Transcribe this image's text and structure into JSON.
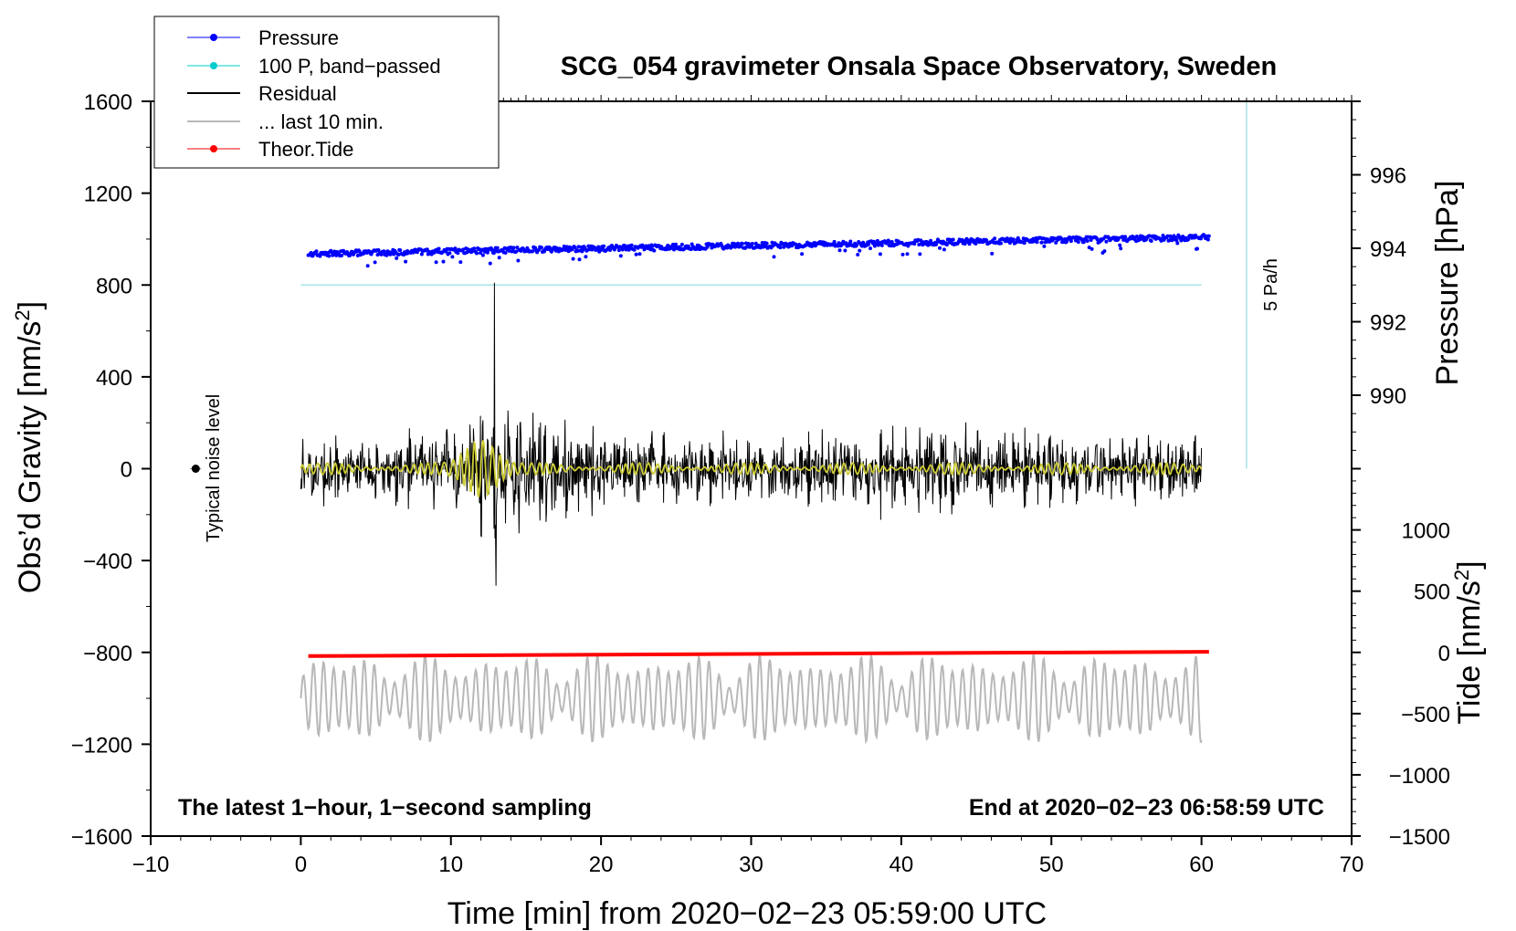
{
  "chart_data": {
    "type": "line",
    "title": "SCG_054 gravimeter Onsala Space Observatory, Sweden",
    "xlabel": "Time [min] from 2020−02−23 05:59:00 UTC",
    "ylabel_left": "Obs’d Gravity [nm/s",
    "ylabel_sup": "2",
    "ylabel_close": "]",
    "ylabel_right_pressure": "Pressure [hPa]",
    "ylabel_right_tide": "Tide [nm/s",
    "xlim": [
      -10,
      70
    ],
    "ylim_left": [
      -1600,
      1600
    ],
    "pressure_range_hpa": [
      988,
      998
    ],
    "tide_range": [
      -1500,
      1500
    ],
    "x_ticks": [
      "−10",
      "0",
      "10",
      "20",
      "30",
      "40",
      "50",
      "60",
      "70"
    ],
    "x_tick_values": [
      -10,
      0,
      10,
      20,
      30,
      40,
      50,
      60,
      70
    ],
    "y_left_ticks": [
      "1600",
      "1200",
      "800",
      "400",
      "0",
      "−400",
      "−800",
      "−1200",
      "−1600"
    ],
    "y_left_tick_values": [
      1600,
      1200,
      800,
      400,
      0,
      -400,
      -800,
      -1200,
      -1600
    ],
    "pressure_ticks": [
      "996",
      "994",
      "992",
      "990"
    ],
    "pressure_tick_values": [
      996,
      994,
      992,
      990
    ],
    "tide_ticks": [
      "1000",
      "500",
      "0",
      "−500",
      "−1000",
      "−1500"
    ],
    "tide_tick_values": [
      1000,
      500,
      0,
      -500,
      -1000,
      -1500
    ],
    "legend": [
      {
        "label": "Pressure",
        "color": "#0000ff",
        "marker": "dot"
      },
      {
        "label": "100 P, band−passed",
        "color": "#00cccc",
        "marker": "dot"
      },
      {
        "label": "Residual",
        "color": "#000000",
        "marker": "line"
      },
      {
        "label": "... last 10 min.",
        "color": "#b8b8b8",
        "marker": "line"
      },
      {
        "label": "Theor.Tide",
        "color": "#ff0000",
        "marker": "dot"
      }
    ],
    "legend_position": "top-left",
    "series": [
      {
        "name": "Pressure",
        "unit": "hPa",
        "x_range": [
          0.5,
          60.5
        ],
        "start": 993.85,
        "end": 994.3,
        "color": "#0000ff"
      },
      {
        "name": "100 P, band−passed",
        "unit": "nm/s2 (offset 800)",
        "x_range": [
          0,
          60
        ],
        "value": 800,
        "color": "#a8e4e4"
      },
      {
        "name": "Residual",
        "unit": "nm/s2",
        "x_range": [
          0,
          60
        ],
        "typical_amplitude": 180,
        "max": 810,
        "min": -510,
        "max_at_min": 12.9,
        "color": "#000000"
      },
      {
        "name": "Residual band−passed",
        "unit": "nm/s2",
        "x_range": [
          0,
          60
        ],
        "typical_amplitude": 25,
        "burst_amplitude": 120,
        "burst_at_min": 12,
        "color": "#cccc33"
      },
      {
        "name": "... last 10 min.",
        "unit": "nm/s2 (offset −1000)",
        "x_range": [
          0,
          60
        ],
        "typical_amplitude": 150,
        "color": "#b8b8b8"
      },
      {
        "name": "Theor.Tide",
        "unit": "nm/s2",
        "x_range": [
          0.5,
          60.5
        ],
        "start": -30,
        "end": 5,
        "color": "#ff0000"
      }
    ],
    "pressure_rate_scale": {
      "label": "5 Pa/h",
      "x": 63,
      "y_top": 1600,
      "y_bottom": 0,
      "color": "#a8e4e4"
    },
    "noise_marker": {
      "label": "Typical noise level",
      "x": -7,
      "y": 0
    },
    "annotations": {
      "bottom_left": "The latest 1−hour, 1−second sampling",
      "bottom_right": "End at 2020−02−23 06:58:59 UTC"
    }
  }
}
